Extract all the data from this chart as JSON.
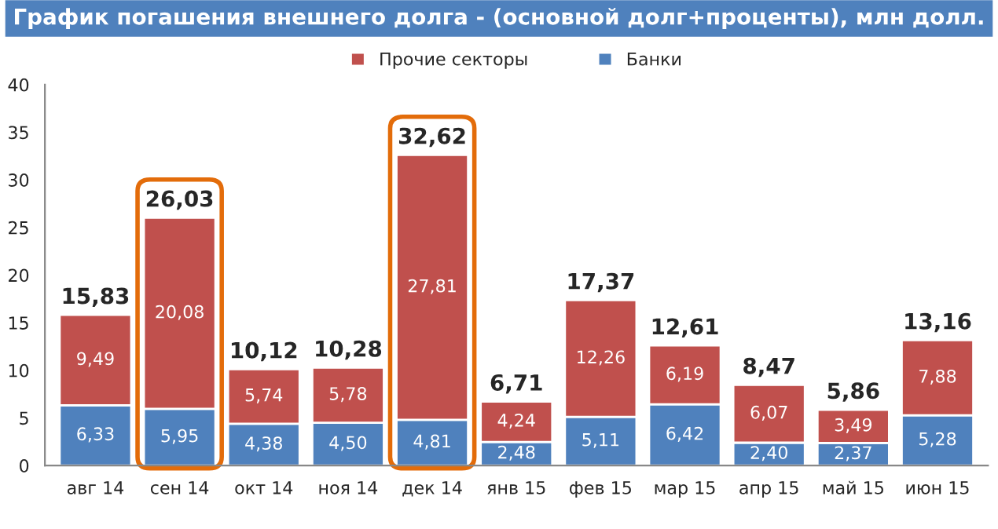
{
  "chart_data": {
    "type": "bar",
    "title": "График погашения внешнего долга - (основной долг+проценты), млн долл.",
    "categories": [
      "авг 14",
      "сен 14",
      "окт 14",
      "ноя 14",
      "дек 14",
      "янв 15",
      "фев 15",
      "мар 15",
      "апр 15",
      "май 15",
      "июн 15"
    ],
    "stacked": true,
    "series": [
      {
        "name": "Банки",
        "color": "#4f81bd",
        "values": [
          6.33,
          5.95,
          4.38,
          4.5,
          4.81,
          2.48,
          5.11,
          6.42,
          2.4,
          2.37,
          5.28
        ],
        "value_labels": [
          "6,33",
          "5,95",
          "4,38",
          "4,50",
          "4,81",
          "2,48",
          "5,11",
          "6,42",
          "2,40",
          "2,37",
          "5,28"
        ]
      },
      {
        "name": "Прочие секторы",
        "color": "#c0504d",
        "values": [
          9.49,
          20.08,
          5.74,
          5.78,
          27.81,
          4.24,
          12.26,
          6.19,
          6.07,
          3.49,
          7.88
        ],
        "value_labels": [
          "9,49",
          "20,08",
          "5,74",
          "5,78",
          "27,81",
          "4,24",
          "12,26",
          "6,19",
          "6,07",
          "3,49",
          "7,88"
        ]
      }
    ],
    "totals": [
      "15,83",
      "26,03",
      "10,12",
      "10,28",
      "32,62",
      "6,71",
      "17,37",
      "12,61",
      "8,47",
      "5,86",
      "13,16"
    ],
    "ylim": [
      0,
      40
    ],
    "yticks": [
      0,
      5,
      10,
      15,
      20,
      25,
      30,
      35,
      40
    ],
    "grid": false,
    "legend": "top"
  }
}
